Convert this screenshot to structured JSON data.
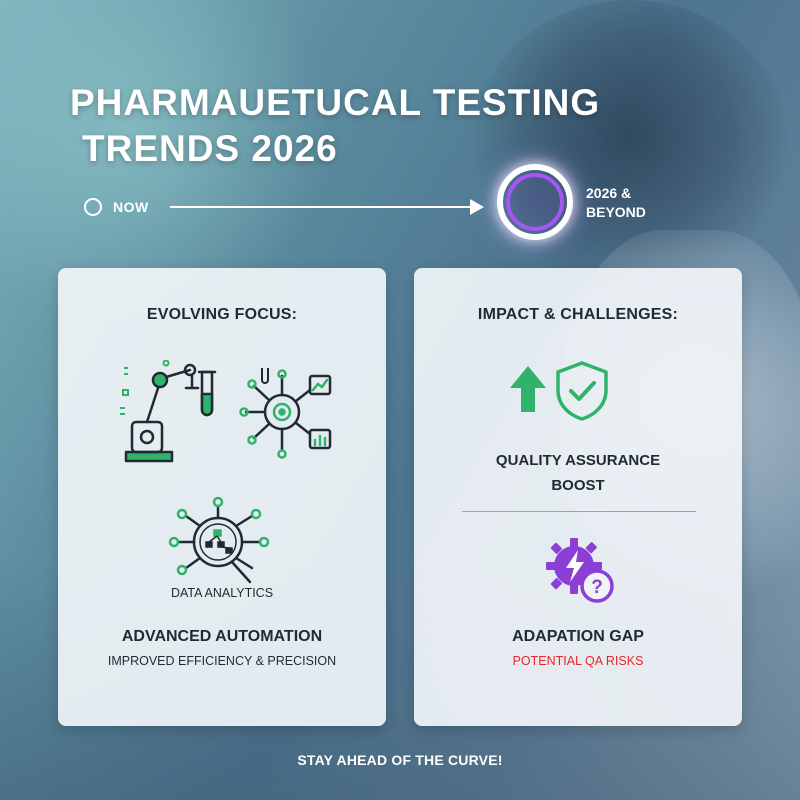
{
  "title": {
    "line1": "PHARMAUETUCAL TESTING",
    "line2": "TRENDS 2026"
  },
  "timeline": {
    "start_label": "NOW",
    "end_label_line1": "2026 &",
    "end_label_line2": "BEYOND"
  },
  "left_card": {
    "heading": "EVOLVING FOCUS:",
    "analytics_label": "DATA ANALYTICS",
    "main_label": "ADVANCED AUTOMATION",
    "sub_label": "IMPROVED EFFICIENCY & PRECISION",
    "icons": [
      "robot-arm-test-tube-icon",
      "network-target-charts-icon",
      "data-analytics-network-icon"
    ]
  },
  "right_card": {
    "heading": "IMPACT & CHALLENGES:",
    "qa_label_line1": "QUALITY ASSURANCE",
    "qa_label_line2": "BOOST",
    "gap_label": "ADAPATION GAP",
    "risk_label": "POTENTIAL QA RISKS",
    "icons": [
      "up-arrow-icon",
      "shield-check-icon",
      "gear-lightning-question-icon"
    ]
  },
  "footer": "STAY AHEAD OF THE CURVE!",
  "colors": {
    "accent_green": "#2fb36b",
    "accent_purple": "#8b3fd6",
    "risk_red": "#e5262b",
    "text_dark": "#1f2a33"
  }
}
